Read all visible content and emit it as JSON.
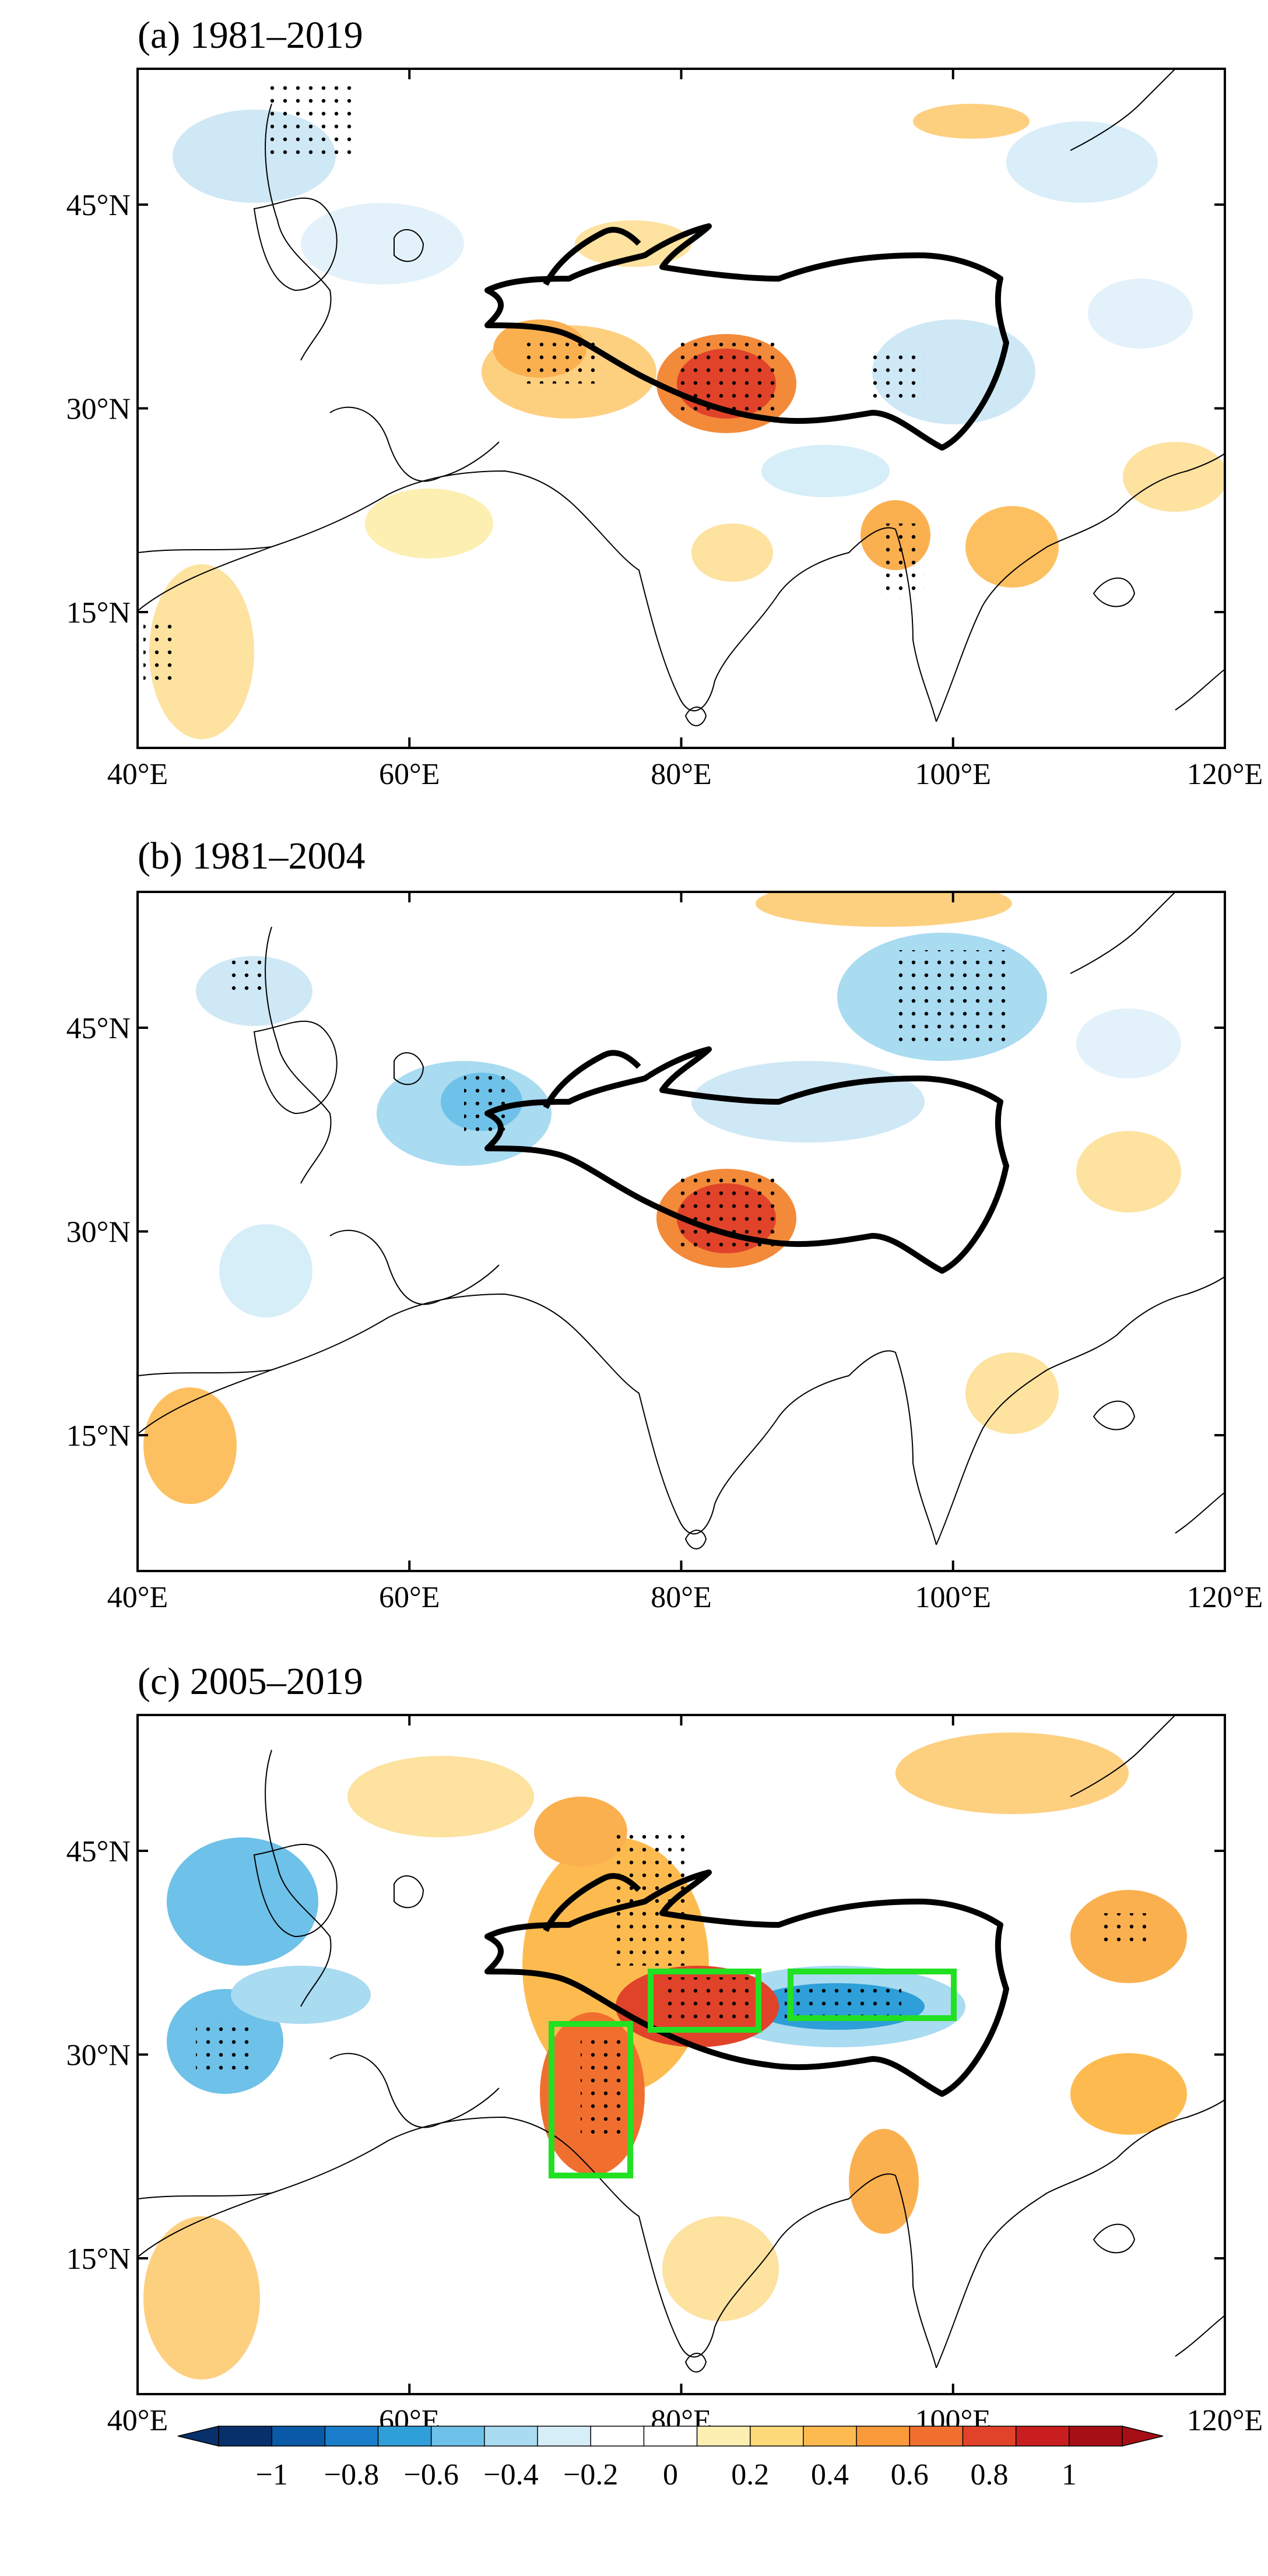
{
  "panels": [
    {
      "label": "(a) 1981–2019",
      "period": [
        1981,
        2019
      ]
    },
    {
      "label": "(b) 1981–2004",
      "period": [
        1981,
        2004
      ]
    },
    {
      "label": "(c) 2005–2019",
      "period": [
        2005,
        2019
      ]
    }
  ],
  "map": {
    "lon_range": [
      40,
      120
    ],
    "lat_range": [
      5,
      55
    ],
    "x_ticks": [
      "40°E",
      "60°E",
      "80°E",
      "100°E",
      "120°E"
    ],
    "y_ticks": [
      "15°N",
      "30°N",
      "45°N"
    ],
    "outline_region": "Tibetan Plateau",
    "stippling": "significant",
    "highlight_boxes_panel_c": 3
  },
  "colorbar": {
    "labels": [
      "−1",
      "−0.8",
      "−0.6",
      "−0.4",
      "−0.2",
      "0",
      "0.2",
      "0.4",
      "0.6",
      "0.8",
      "1"
    ],
    "colors": [
      "#08306b",
      "#0b5aa8",
      "#1a7dc9",
      "#2e9fd8",
      "#6ec1e8",
      "#a9dbf1",
      "#d6eef8",
      "#ffffff",
      "#ffffff",
      "#fdeeb2",
      "#fed979",
      "#fdbb4f",
      "#fa9a3a",
      "#f06f2f",
      "#e0432a",
      "#c81e1f",
      "#a50f15"
    ]
  }
}
